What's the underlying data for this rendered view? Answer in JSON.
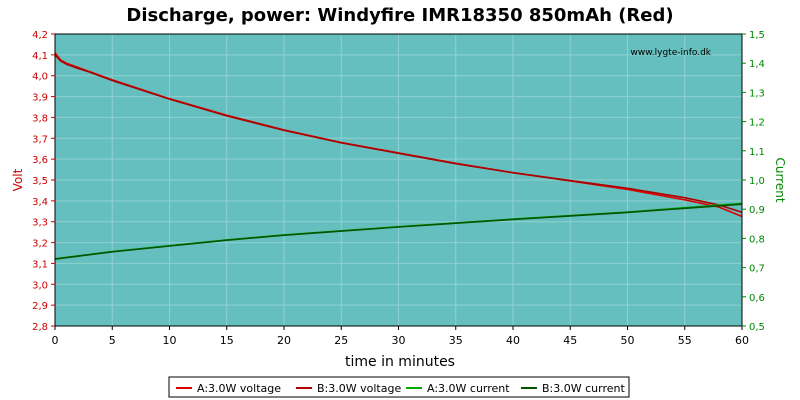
{
  "chart_data": {
    "type": "line",
    "title": "Discharge, power: Windyfire IMR18350 850mAh (Red)",
    "watermark": "www.lygte-info.dk",
    "xlabel": "time in minutes",
    "ylabel_left": "Volt",
    "ylabel_right": "Current",
    "xlim": [
      0,
      60
    ],
    "ylim_left": [
      2.8,
      4.2
    ],
    "ylim_right": [
      0.5,
      1.5
    ],
    "x_ticks": [
      "0",
      "5",
      "10",
      "15",
      "20",
      "25",
      "30",
      "35",
      "40",
      "45",
      "50",
      "55",
      "60"
    ],
    "y_left_ticks": [
      "2,8",
      "2,9",
      "3,0",
      "3,1",
      "3,2",
      "3,3",
      "3,4",
      "3,5",
      "3,6",
      "3,7",
      "3,8",
      "3,9",
      "4,0",
      "4,1",
      "4,2"
    ],
    "y_right_ticks": [
      "0,5",
      "0,6",
      "0,7",
      "0,8",
      "0,9",
      "1,0",
      "1,1",
      "1,2",
      "1,3",
      "1,4",
      "1,5"
    ],
    "grid": true,
    "legend_position": "bottom",
    "colors": {
      "plot_bg": "#66bfbf",
      "grid": "#8fd0d0",
      "voltage": "#dd0000",
      "current": "#008800",
      "left_axis_text": "#cc0000",
      "right_axis_text": "#008800"
    },
    "series": [
      {
        "name": "A:3.0W voltage",
        "axis": "left",
        "color": "#dd0000",
        "x": [
          0,
          0.5,
          1,
          2,
          3,
          5,
          10,
          15,
          20,
          25,
          30,
          35,
          40,
          45,
          50,
          55,
          58,
          60
        ],
        "y": [
          4.11,
          4.075,
          4.06,
          4.04,
          4.02,
          3.98,
          3.89,
          3.81,
          3.74,
          3.68,
          3.63,
          3.58,
          3.535,
          3.495,
          3.455,
          3.405,
          3.37,
          3.325
        ]
      },
      {
        "name": "B:3.0W voltage",
        "axis": "left",
        "color": "#aa0000",
        "x": [
          0,
          0.5,
          1,
          2,
          3,
          5,
          10,
          15,
          20,
          25,
          30,
          35,
          40,
          45,
          50,
          55,
          58,
          60
        ],
        "y": [
          4.1,
          4.07,
          4.055,
          4.035,
          4.018,
          3.977,
          3.888,
          3.808,
          3.738,
          3.678,
          3.628,
          3.578,
          3.535,
          3.497,
          3.46,
          3.415,
          3.38,
          3.345
        ]
      },
      {
        "name": "A:3.0W current",
        "axis": "right",
        "color": "#00aa00",
        "x": [
          0,
          5,
          10,
          15,
          20,
          25,
          30,
          35,
          40,
          45,
          50,
          55,
          60
        ],
        "y": [
          0.73,
          0.755,
          0.775,
          0.795,
          0.812,
          0.826,
          0.84,
          0.853,
          0.866,
          0.878,
          0.89,
          0.905,
          0.92
        ]
      },
      {
        "name": "B:3.0W current",
        "axis": "right",
        "color": "#005500",
        "x": [
          0,
          5,
          10,
          15,
          20,
          25,
          30,
          35,
          40,
          45,
          50,
          55,
          60
        ],
        "y": [
          0.729,
          0.754,
          0.774,
          0.794,
          0.811,
          0.825,
          0.839,
          0.852,
          0.865,
          0.877,
          0.889,
          0.903,
          0.917
        ]
      }
    ]
  }
}
